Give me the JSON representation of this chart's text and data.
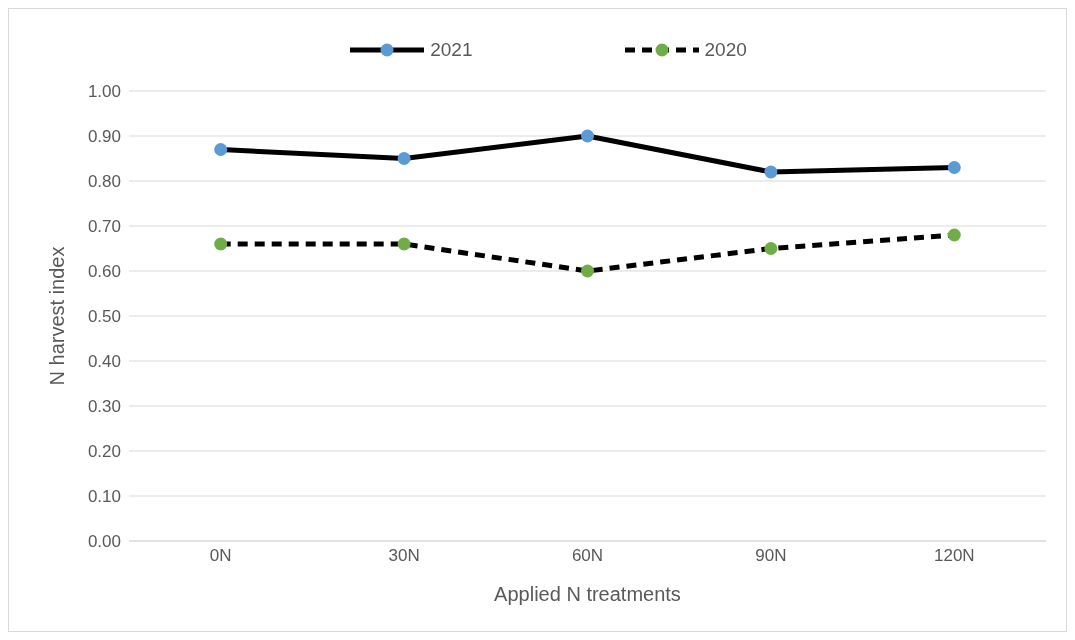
{
  "chart_data": {
    "type": "line",
    "xlabel": "Applied N treatments",
    "ylabel": "N harvest index",
    "categories": [
      "0N",
      "30N",
      "60N",
      "90N",
      "120N"
    ],
    "series": [
      {
        "name": "2021",
        "color": "#000000",
        "colors": [
          "#5b9bd5",
          "#5b9bd5",
          "#5b9bd5",
          "#5b9bd5",
          "#5b9bd5"
        ],
        "line_style": "solid",
        "values": [
          0.87,
          0.85,
          0.9,
          0.82,
          0.83
        ]
      },
      {
        "name": "2020",
        "color": "#000000",
        "colors": [
          "#70ad47",
          "#70ad47",
          "#70ad47",
          "#70ad47",
          "#70ad47"
        ],
        "line_style": "dashed",
        "values": [
          0.66,
          0.66,
          0.6,
          0.65,
          0.68
        ]
      }
    ],
    "ylim": [
      0,
      1
    ],
    "yticks": [
      {
        "value": 0,
        "label": "0.00"
      },
      {
        "value": 0.1,
        "label": "0.10"
      },
      {
        "value": 0.2,
        "label": "0.20"
      },
      {
        "value": 0.3,
        "label": "0.30"
      },
      {
        "value": 0.4,
        "label": "0.40"
      },
      {
        "value": 0.5,
        "label": "0.50"
      },
      {
        "value": 0.6,
        "label": "0.60"
      },
      {
        "value": 0.7,
        "label": "0.70"
      },
      {
        "value": 0.8,
        "label": "0.80"
      },
      {
        "value": 0.9,
        "label": "0.90"
      },
      {
        "value": 1.0,
        "label": "1.00"
      }
    ],
    "grid": "y",
    "legend": "top",
    "marker": "circle"
  }
}
